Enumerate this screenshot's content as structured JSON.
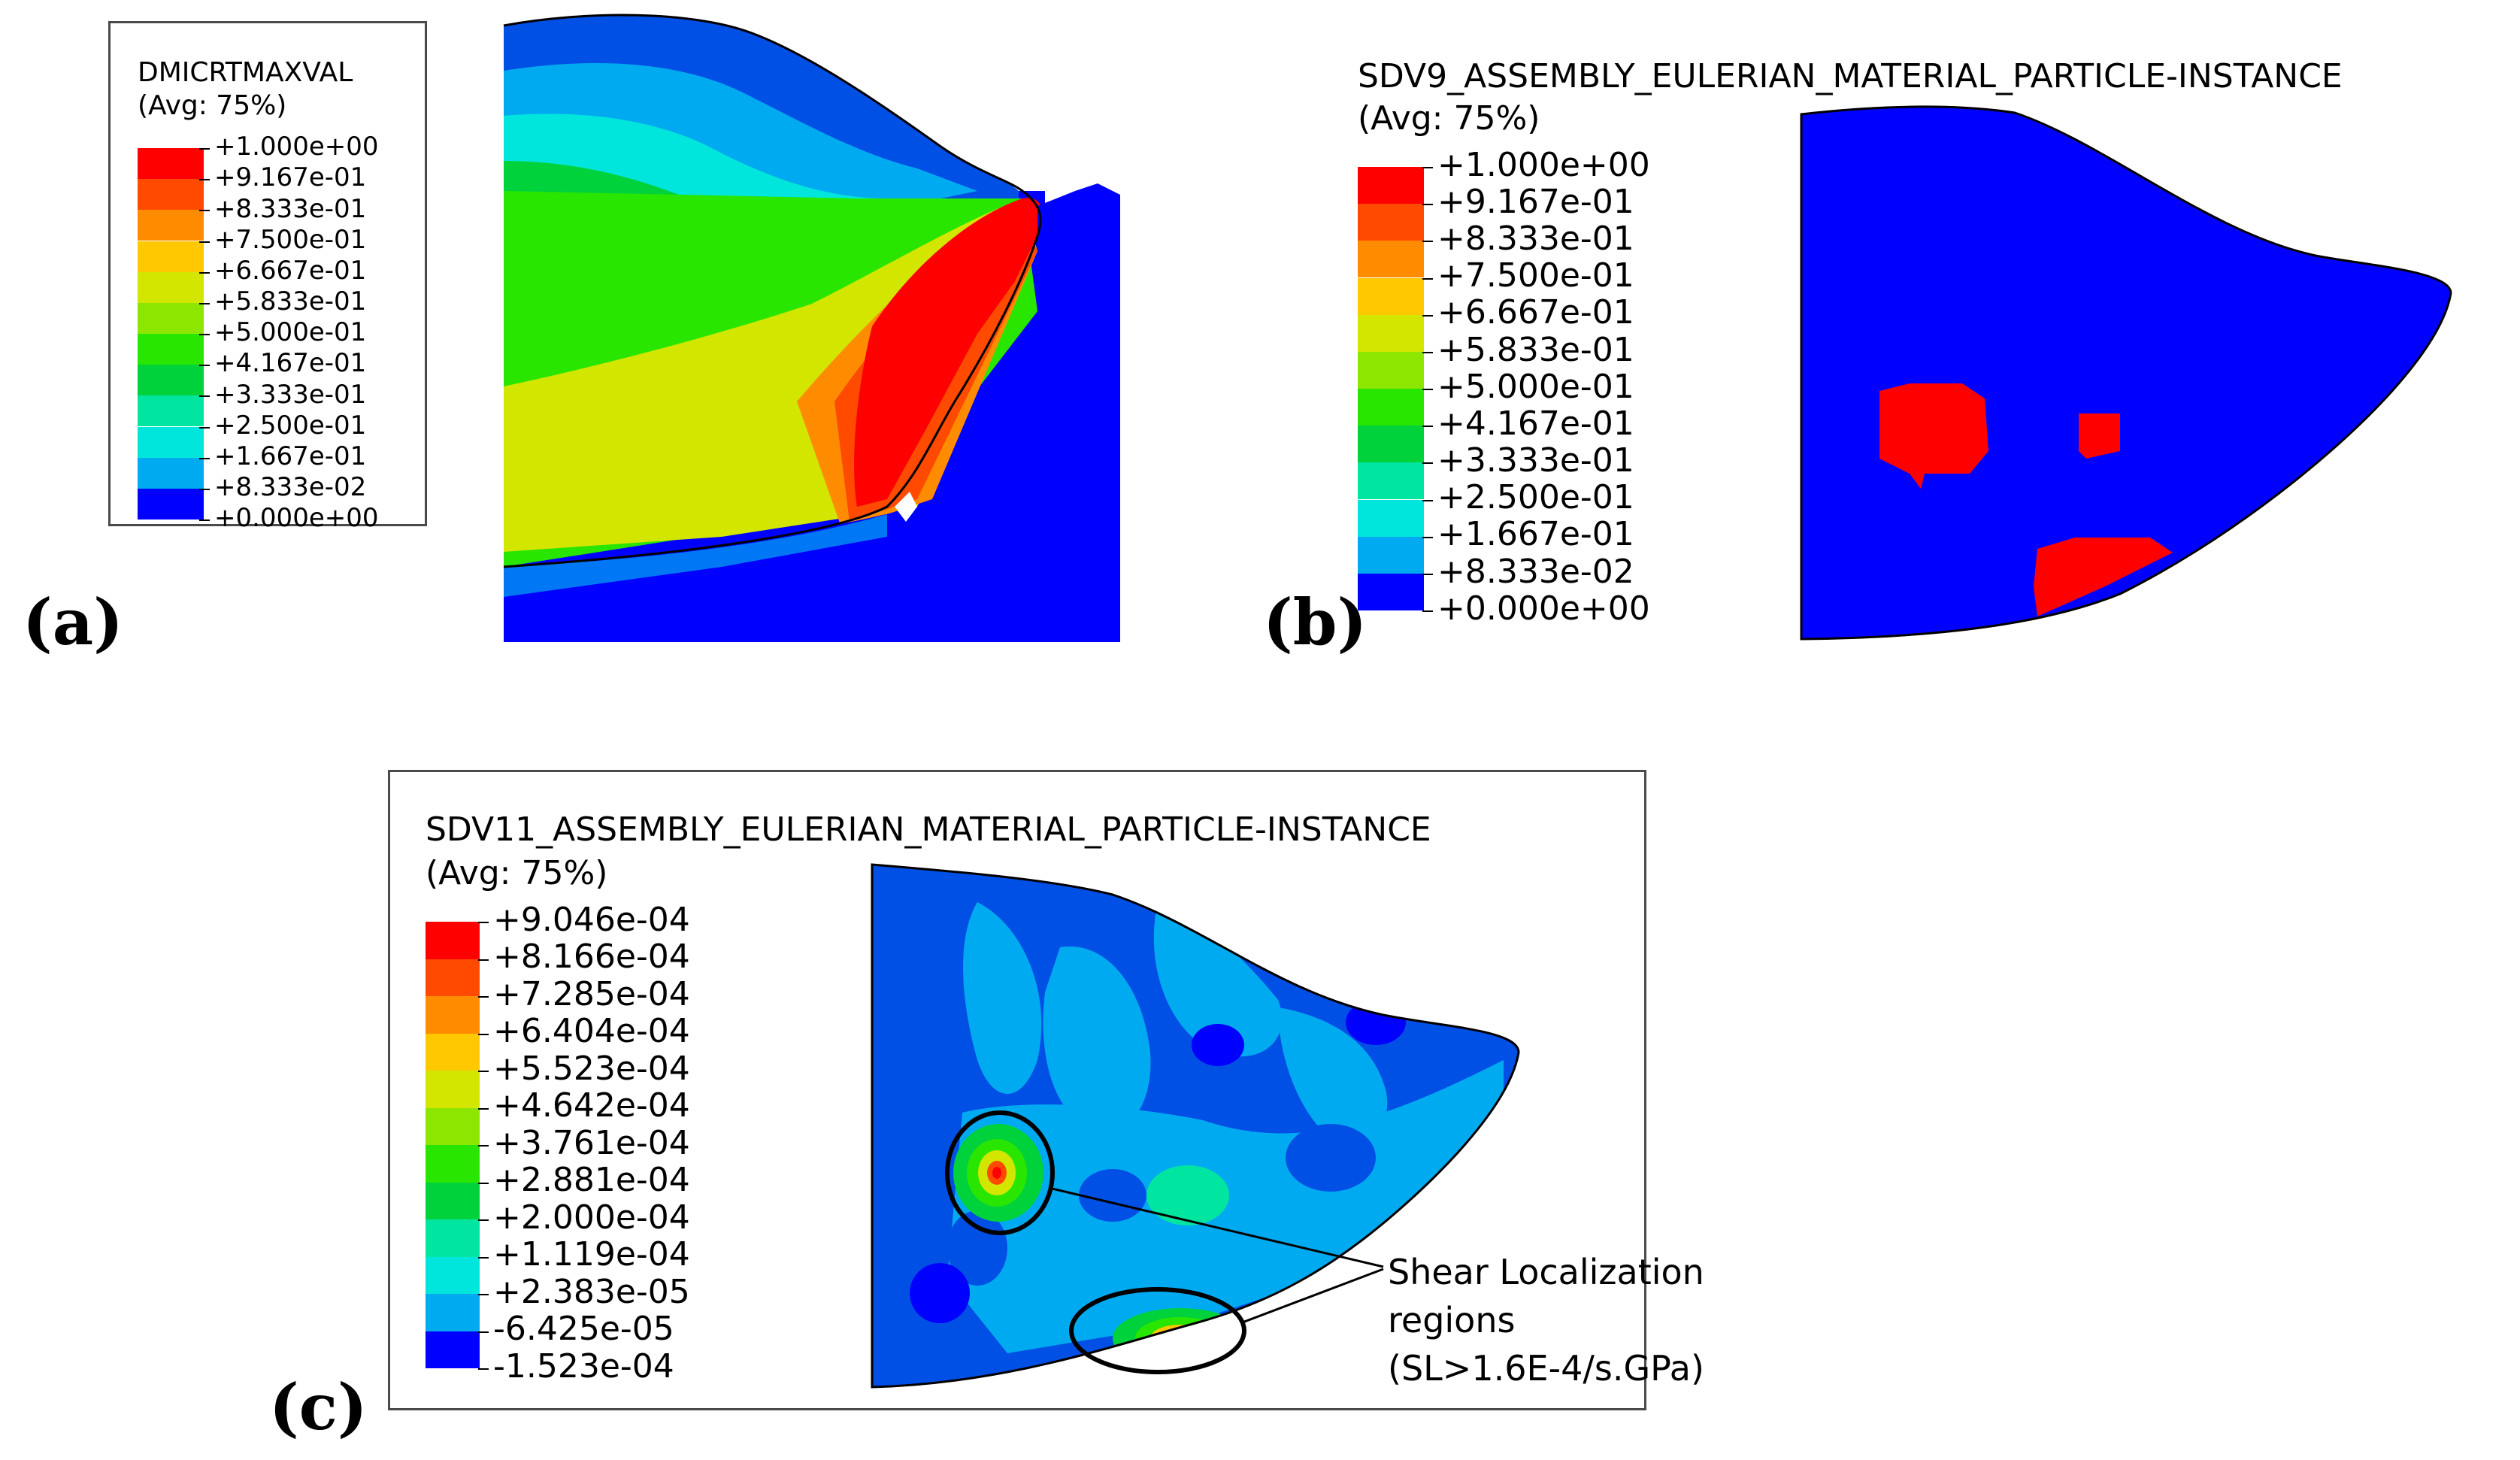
{
  "panels": {
    "a": {
      "label": "(a)",
      "legend": {
        "title": "DMICRTMAXVAL",
        "subtitle": "(Avg: 75%)",
        "ticks": [
          "+1.000e+00",
          "+9.167e-01",
          "+8.333e-01",
          "+7.500e-01",
          "+6.667e-01",
          "+5.833e-01",
          "+5.000e-01",
          "+4.167e-01",
          "+3.333e-01",
          "+2.500e-01",
          "+1.667e-01",
          "+8.333e-02",
          "+0.000e+00"
        ]
      }
    },
    "b": {
      "label": "(b)",
      "legend": {
        "title": "SDV9_ASSEMBLY_EULERIAN_MATERIAL_PARTICLE-INSTANCE",
        "subtitle": "(Avg: 75%)",
        "ticks": [
          "+1.000e+00",
          "+9.167e-01",
          "+8.333e-01",
          "+7.500e-01",
          "+6.667e-01",
          "+5.833e-01",
          "+5.000e-01",
          "+4.167e-01",
          "+3.333e-01",
          "+2.500e-01",
          "+1.667e-01",
          "+8.333e-02",
          "+0.000e+00"
        ]
      }
    },
    "c": {
      "label": "(c)",
      "legend": {
        "title": "SDV11_ASSEMBLY_EULERIAN_MATERIAL_PARTICLE-INSTANCE",
        "subtitle": "(Avg: 75%)",
        "ticks": [
          "+9.046e-04",
          "+8.166e-04",
          "+7.285e-04",
          "+6.404e-04",
          "+5.523e-04",
          "+4.642e-04",
          "+3.761e-04",
          "+2.881e-04",
          "+2.000e-04",
          "+1.119e-04",
          "+2.383e-05",
          "-6.425e-05",
          "-1.523e-04"
        ]
      },
      "annotation": {
        "line1": "Shear Localization",
        "line2": "regions",
        "line3": "(SL>1.6E-4/s.GPa)"
      }
    }
  },
  "colors": {
    "scale": [
      "#ff0000",
      "#ff4a00",
      "#ff8c00",
      "#ffc800",
      "#d2e600",
      "#8ce600",
      "#28e600",
      "#00d23c",
      "#00e6a0",
      "#00e6dc",
      "#00aaf0",
      "#0050e6",
      "#0000ff"
    ]
  }
}
